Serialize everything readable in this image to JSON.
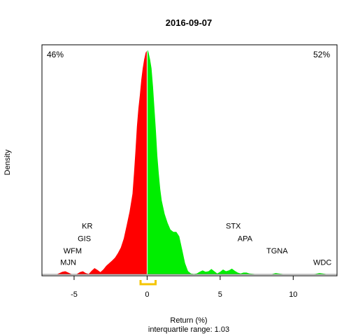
{
  "chart_data": {
    "type": "area",
    "title": "2016-09-07",
    "xlabel": "Return (%)",
    "ylabel": "Density",
    "subtitle": "interquartile range: 1.03",
    "xlim": [
      -7.2,
      13.0
    ],
    "ylim": [
      0,
      1.0
    ],
    "xticks": [
      -5,
      0,
      5,
      10
    ],
    "xtick_labels": [
      "-5",
      "0",
      "5",
      "10"
    ],
    "left_pct": "46%",
    "right_pct": "52%",
    "colors": {
      "negative": "#ff0000",
      "positive": "#00ee00",
      "left_pct": "#ff0000",
      "right_pct": "#008800",
      "iqr": "#f5c400",
      "axis": "#808080"
    },
    "iqr": [
      -0.45,
      0.58
    ],
    "density": {
      "x": [
        -6.2,
        -6.0,
        -5.8,
        -5.6,
        -5.4,
        -5.2,
        -5.0,
        -4.8,
        -4.6,
        -4.4,
        -4.2,
        -4.0,
        -3.8,
        -3.6,
        -3.4,
        -3.2,
        -3.0,
        -2.8,
        -2.6,
        -2.4,
        -2.2,
        -2.0,
        -1.8,
        -1.6,
        -1.4,
        -1.2,
        -1.0,
        -0.9,
        -0.8,
        -0.7,
        -0.6,
        -0.5,
        -0.4,
        -0.3,
        -0.2,
        -0.1,
        0.0,
        0.05,
        0.1,
        0.2,
        0.3,
        0.4,
        0.5,
        0.6,
        0.7,
        0.8,
        0.9,
        1.0,
        1.2,
        1.4,
        1.6,
        1.8,
        2.0,
        2.2,
        2.4,
        2.6,
        2.8,
        3.0,
        3.2,
        3.4,
        3.6,
        3.8,
        4.0,
        4.2,
        4.4,
        4.6,
        4.8,
        5.0,
        5.2,
        5.4,
        5.6,
        5.8,
        6.0,
        6.2,
        6.4,
        6.6,
        6.8,
        7.0,
        7.5,
        8.0,
        8.5,
        8.8,
        9.1,
        9.5,
        10.0,
        11.0,
        11.5,
        11.8,
        12.1,
        12.4
      ],
      "y": [
        0,
        0.006,
        0.012,
        0.014,
        0.008,
        0.002,
        0,
        0.002,
        0.01,
        0.014,
        0.006,
        0.002,
        0.016,
        0.028,
        0.02,
        0.01,
        0.022,
        0.038,
        0.05,
        0.062,
        0.075,
        0.095,
        0.12,
        0.16,
        0.22,
        0.28,
        0.36,
        0.45,
        0.55,
        0.66,
        0.74,
        0.8,
        0.87,
        0.92,
        0.96,
        0.99,
        1.0,
        1.0,
        0.99,
        0.96,
        0.92,
        0.84,
        0.74,
        0.64,
        0.53,
        0.45,
        0.38,
        0.33,
        0.27,
        0.23,
        0.2,
        0.19,
        0.19,
        0.17,
        0.11,
        0.05,
        0.015,
        0.004,
        0.002,
        0.004,
        0.012,
        0.018,
        0.012,
        0.014,
        0.024,
        0.014,
        0.004,
        0.012,
        0.022,
        0.014,
        0.018,
        0.026,
        0.016,
        0.008,
        0.004,
        0.008,
        0.008,
        0.004,
        0.001,
        0,
        0.001,
        0.006,
        0.003,
        0,
        0,
        0,
        0.002,
        0.006,
        0.003,
        0
      ]
    },
    "labels": [
      {
        "text": "KR",
        "x": -4.1,
        "y": 0.205
      },
      {
        "text": "GIS",
        "x": -4.3,
        "y": 0.148
      },
      {
        "text": "WFM",
        "x": -5.1,
        "y": 0.094
      },
      {
        "text": "MJN",
        "x": -5.4,
        "y": 0.042
      },
      {
        "text": "STX",
        "x": 5.9,
        "y": 0.205
      },
      {
        "text": "APA",
        "x": 6.7,
        "y": 0.148
      },
      {
        "text": "TGNA",
        "x": 8.9,
        "y": 0.094
      },
      {
        "text": "WDC",
        "x": 12.0,
        "y": 0.042
      }
    ]
  }
}
